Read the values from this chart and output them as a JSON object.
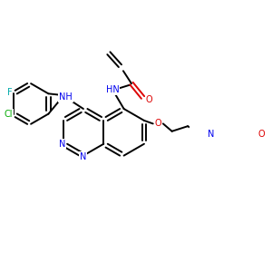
{
  "background_color": "#ffffff",
  "figsize": [
    3.0,
    3.0
  ],
  "dpi": 100,
  "atom_colors": {
    "N": "#0000ee",
    "O": "#dd0000",
    "F": "#00aaaa",
    "Cl": "#00aa00",
    "C": "#000000"
  },
  "bond_color": "#000000",
  "bond_width": 1.4,
  "font_size_atom": 7.0
}
